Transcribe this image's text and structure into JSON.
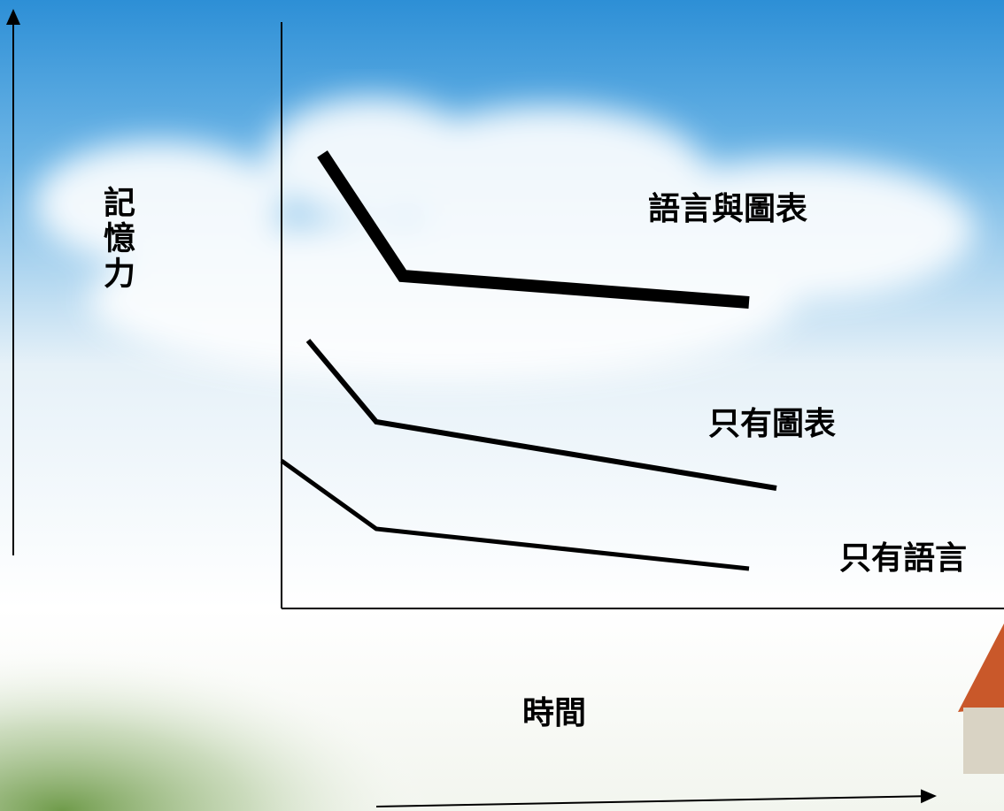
{
  "axes": {
    "y_label": "記憶力",
    "x_label": "時間"
  },
  "lines": [
    {
      "label": "語言與圖表"
    },
    {
      "label": "只有圖表"
    },
    {
      "label": "只有語言"
    }
  ]
}
